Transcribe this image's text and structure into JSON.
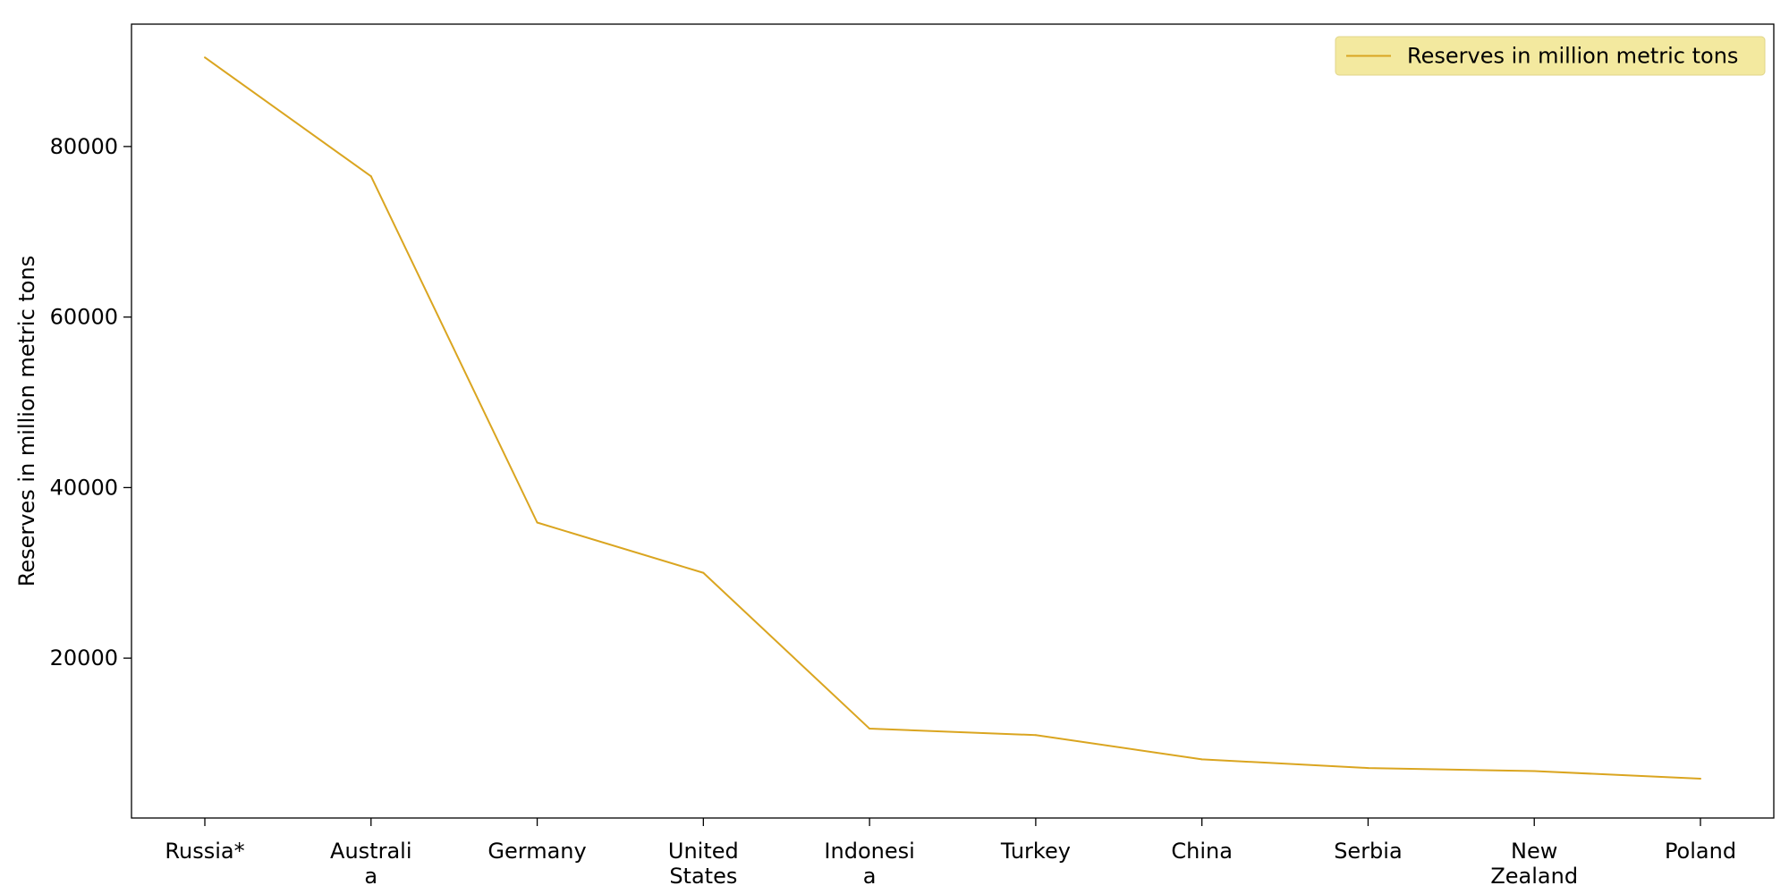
{
  "chart_data": {
    "type": "line",
    "title": "",
    "xlabel": "",
    "ylabel": "Reserves in million metric tons",
    "categories": [
      "Russia*",
      "Australia",
      "Germany",
      "United States",
      "Indonesia",
      "Turkey",
      "China",
      "Serbia",
      "New Zealand",
      "Poland"
    ],
    "category_labels": [
      [
        "Russia*"
      ],
      [
        "Australi",
        "a"
      ],
      [
        "Germany"
      ],
      [
        "United",
        "States"
      ],
      [
        "Indonesi",
        "a"
      ],
      [
        "Turkey"
      ],
      [
        "China"
      ],
      [
        "Serbia"
      ],
      [
        "New",
        "Zealand"
      ],
      [
        "Poland"
      ]
    ],
    "series": [
      {
        "name": "Reserves in million metric tons",
        "values": [
          90447,
          76508,
          35900,
          30003,
          11728,
          10975,
          8128,
          7112,
          6750,
          5865
        ],
        "color": "#DAA520"
      }
    ],
    "ylim": [
      1250,
      94350
    ],
    "yticks": [
      20000,
      40000,
      60000,
      80000
    ],
    "ytick_labels": [
      "20000",
      "40000",
      "60000",
      "80000"
    ],
    "grid": false,
    "legend": {
      "position": "top-right",
      "background": "#F3E99F"
    }
  }
}
